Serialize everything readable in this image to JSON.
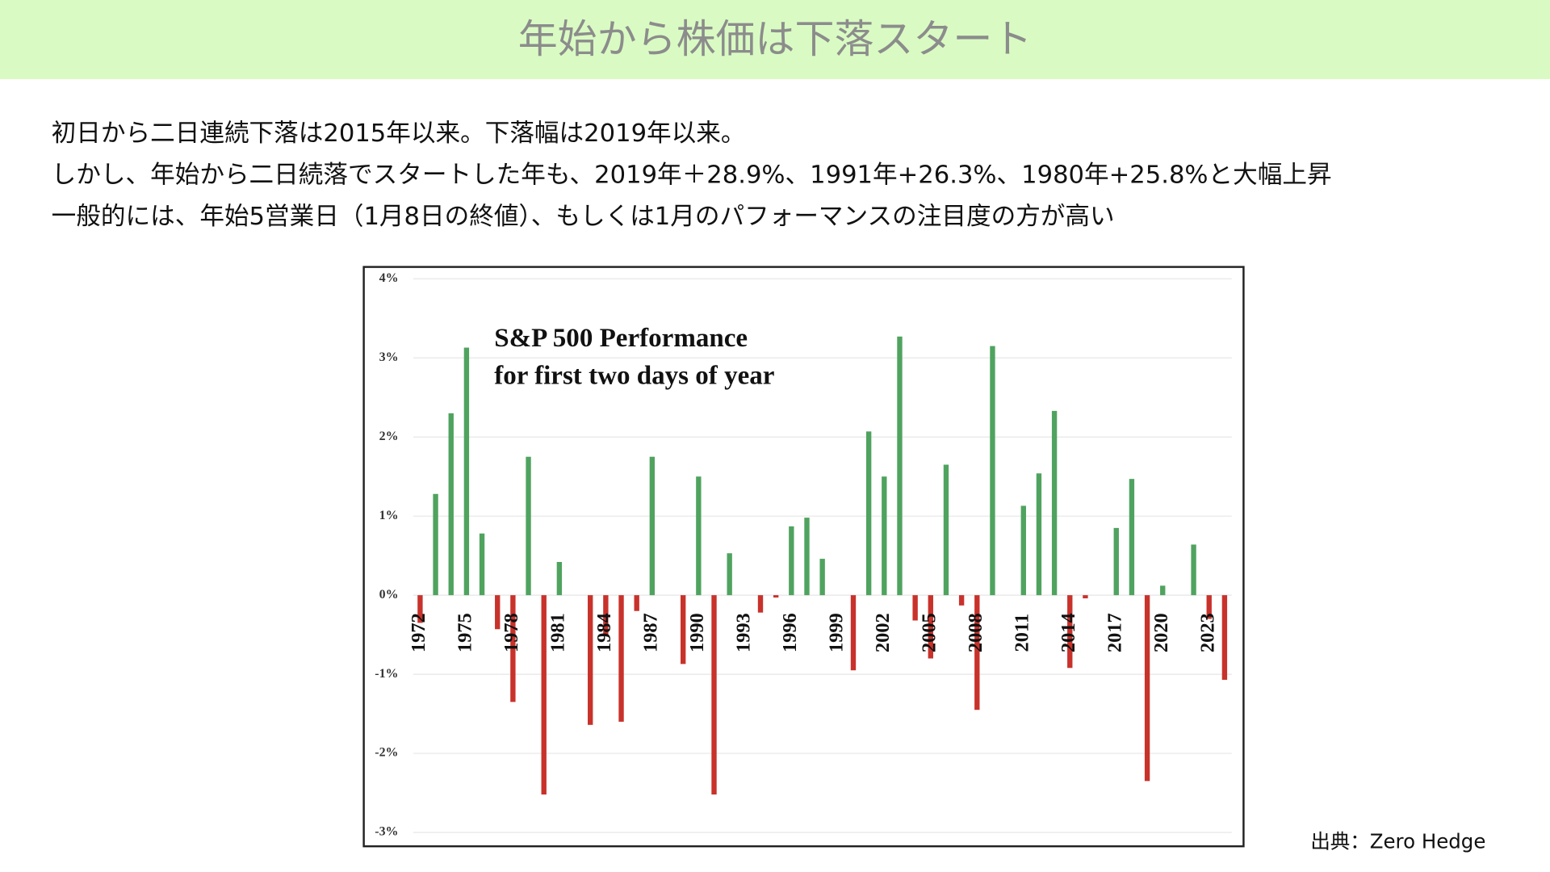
{
  "header": {
    "title": "年始から株価は下落スタート"
  },
  "body": {
    "lines": [
      "初日から二日連続下落は2015年以来。下落幅は2019年以来。",
      "しかし、年始から二日続落でスタートした年も、2019年＋28.9%、1991年+26.3%、1980年+25.8%と大幅上昇",
      "一般的には、年始5営業日（1月8日の終値）、もしくは1月のパフォーマンスの注目度の方が高い"
    ]
  },
  "chart_data": {
    "type": "bar",
    "title": "S&P 500 Performance",
    "subtitle": "for first two days of year",
    "categories": [
      "1972",
      null,
      null,
      "1975",
      null,
      null,
      "1978",
      null,
      null,
      "1981",
      null,
      null,
      "1984",
      null,
      null,
      "1987",
      null,
      null,
      "1990",
      null,
      null,
      "1993",
      null,
      null,
      "1996",
      null,
      null,
      "1999",
      null,
      null,
      "2002",
      null,
      null,
      "2005",
      null,
      null,
      "2008",
      null,
      null,
      "2011",
      null,
      null,
      "2014",
      null,
      null,
      "2017",
      null,
      null,
      "2020",
      null,
      null,
      "2023",
      null
    ],
    "values": [
      -0.35,
      1.28,
      2.3,
      3.13,
      0.78,
      -0.43,
      -1.35,
      1.75,
      -2.52,
      0.42,
      0,
      -1.64,
      -0.5,
      -1.6,
      -0.2,
      1.75,
      0,
      -0.87,
      1.5,
      -2.52,
      0.53,
      0,
      -0.22,
      -0.03,
      0.87,
      0.98,
      0.46,
      0,
      -0.95,
      2.07,
      1.5,
      3.27,
      -0.32,
      -0.8,
      1.65,
      -0.13,
      -1.45,
      3.15,
      0,
      1.13,
      1.54,
      2.33,
      -0.92,
      -0.04,
      0,
      0.85,
      1.47,
      -2.35,
      0.12,
      0,
      0.64,
      -0.3,
      -1.07
    ],
    "colors": {
      "positive": "#4fa35f",
      "negative": "#c8322b"
    },
    "ylim": [
      -3,
      4
    ],
    "yticks": [
      {
        "value": -3,
        "label": "-3%"
      },
      {
        "value": -2,
        "label": "-2%"
      },
      {
        "value": -1,
        "label": "-1%"
      },
      {
        "value": 0,
        "label": "0%"
      },
      {
        "value": 1,
        "label": "1%"
      },
      {
        "value": 2,
        "label": "2%"
      },
      {
        "value": 3,
        "label": "3%"
      },
      {
        "value": 4,
        "label": "4%"
      }
    ],
    "grid": true
  },
  "source": "出典：Zero Hedge"
}
